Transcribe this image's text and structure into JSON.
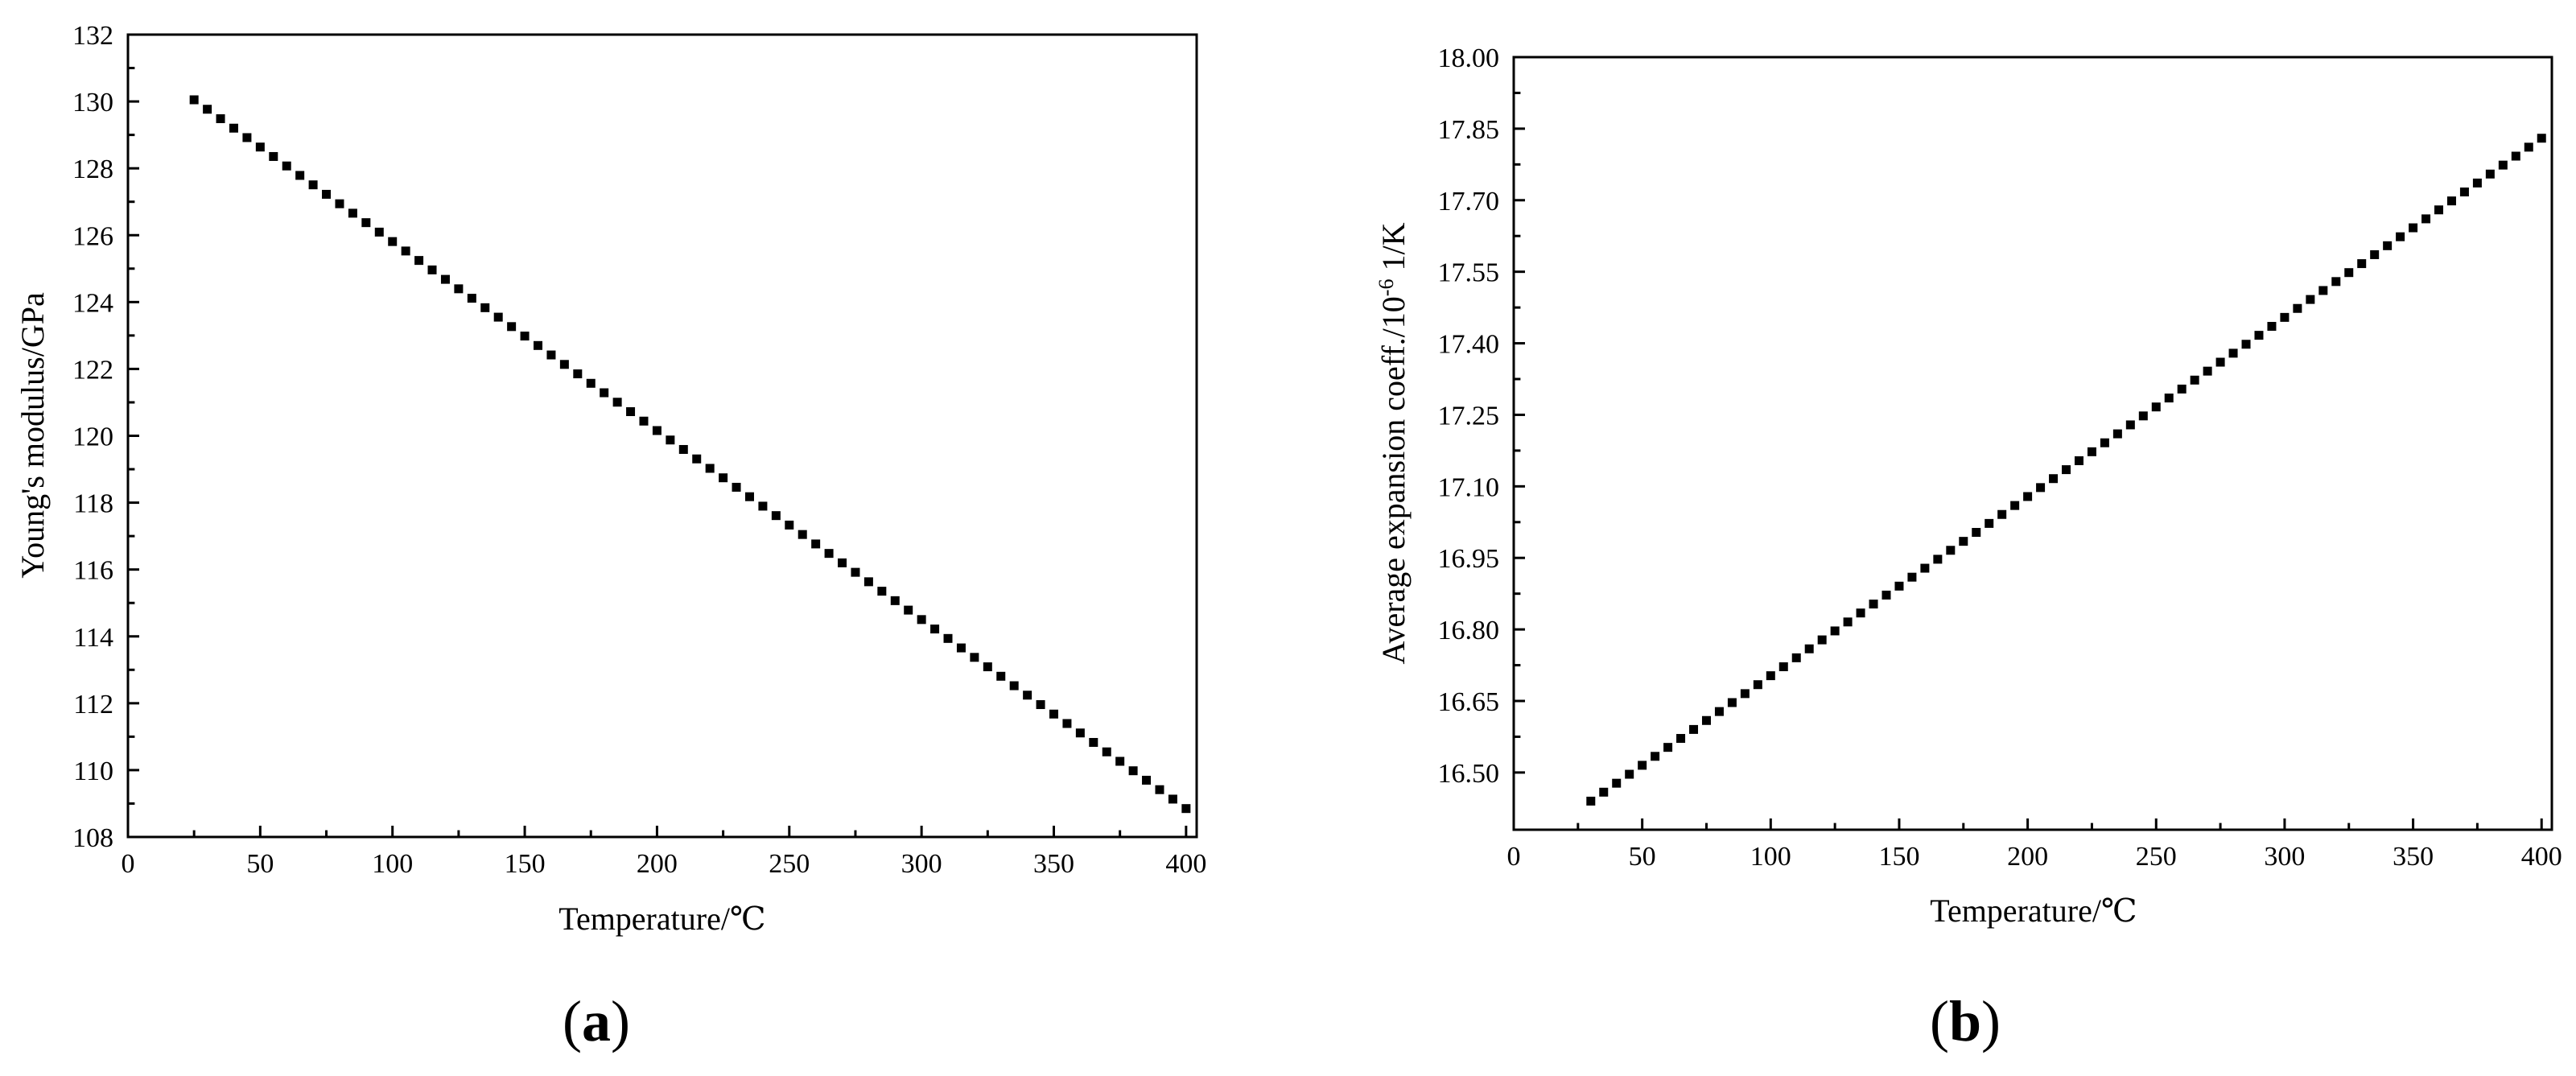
{
  "panel_labels": {
    "a_open": "(",
    "a_letter": "a",
    "a_close": ")",
    "b_open": "(",
    "b_letter": "b",
    "b_close": ")"
  },
  "axis_titles": {
    "a_y": "Young's modulus/GPa",
    "a_x": "Temperature/℃",
    "b_y_pre": "Average expansion coeff./10",
    "b_y_sup": "-6",
    "b_y_post": " 1/K",
    "b_x": "Temperature/℃"
  },
  "chart_data": [
    {
      "type": "scatter",
      "marker": "square",
      "color": "#000000",
      "xlabel": "Temperature/℃",
      "ylabel": "Young's modulus/GPa",
      "xlim": [
        0,
        404
      ],
      "ylim": [
        108,
        132
      ],
      "x_ticks": [
        "0",
        "50",
        "100",
        "150",
        "200",
        "250",
        "300",
        "350",
        "400"
      ],
      "y_ticks": [
        "108",
        "110",
        "112",
        "114",
        "116",
        "118",
        "120",
        "122",
        "124",
        "126",
        "128",
        "130",
        "132"
      ],
      "x_step": 5,
      "x_start": 25,
      "x_end": 400,
      "y_start": 130.05,
      "y_end": 108.85
    },
    {
      "type": "scatter",
      "marker": "square",
      "color": "#000000",
      "xlabel": "Temperature/℃",
      "ylabel": "Average expansion coeff./10-6 1/K",
      "xlim": [
        0,
        404
      ],
      "ylim": [
        16.38,
        18.0
      ],
      "x_ticks": [
        "0",
        "50",
        "100",
        "150",
        "200",
        "250",
        "300",
        "350",
        "400"
      ],
      "y_ticks": [
        "16.50",
        "16.65",
        "16.80",
        "16.95",
        "17.10",
        "17.25",
        "17.40",
        "17.55",
        "17.70",
        "17.85",
        "18.00"
      ],
      "x_step": 5,
      "x_start": 30,
      "x_end": 400,
      "y_start": 16.44,
      "y_end": 17.83
    }
  ]
}
